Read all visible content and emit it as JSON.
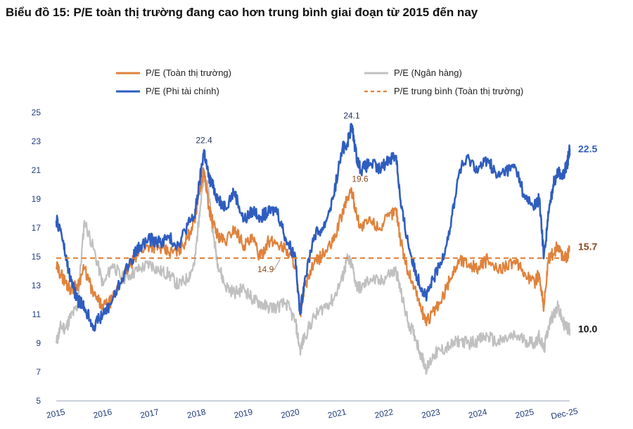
{
  "title": "Biểu đồ 15: P/E toàn thị trường đang cao hơn trung bình giai đoạn từ 2015 đến nay",
  "colors": {
    "market": "#e0823c",
    "banks": "#c0c0c0",
    "nonfin": "#2f5dbf",
    "average": "#e0823c",
    "axis_text": "#1f3b7a",
    "end_market": "#8a4a1e",
    "end_nonfin": "#2f5dbf",
    "end_banks": "#111111"
  },
  "chart_data": {
    "type": "line",
    "x_ticks": [
      "2015",
      "2016",
      "2017",
      "2018",
      "2019",
      "2020",
      "2021",
      "2022",
      "2023",
      "2024",
      "2025",
      "Dec-25"
    ],
    "ylim": [
      5,
      25
    ],
    "y_ticks": [
      "5",
      "7",
      "9",
      "11",
      "13",
      "15",
      "17",
      "19",
      "21",
      "23",
      "25"
    ],
    "grid": false,
    "legend_position": "top",
    "series": [
      {
        "name": "P/E (Toàn thị trường)",
        "key": "market",
        "x": [
          2015.0,
          2015.1,
          2015.2,
          2015.3,
          2015.45,
          2015.6,
          2015.8,
          2016.0,
          2016.2,
          2016.4,
          2016.6,
          2016.8,
          2017.0,
          2017.2,
          2017.4,
          2017.6,
          2017.8,
          2017.95,
          2018.05,
          2018.15,
          2018.25,
          2018.35,
          2018.45,
          2018.6,
          2018.8,
          2019.0,
          2019.2,
          2019.35,
          2019.5,
          2019.7,
          2019.9,
          2020.1,
          2020.2,
          2020.3,
          2020.5,
          2020.7,
          2020.9,
          2021.1,
          2021.2,
          2021.3,
          2021.4,
          2021.5,
          2021.7,
          2021.9,
          2022.1,
          2022.25,
          2022.35,
          2022.5,
          2022.65,
          2022.8,
          2022.9,
          2023.05,
          2023.2,
          2023.4,
          2023.6,
          2023.8,
          2024.0,
          2024.2,
          2024.4,
          2024.6,
          2024.8,
          2025.0,
          2025.2,
          2025.3,
          2025.4,
          2025.5,
          2025.6,
          2025.7,
          2025.8,
          2025.9,
          2025.95
        ],
        "values": [
          14.3,
          13.8,
          13.2,
          12.8,
          13.0,
          14.2,
          12.3,
          11.5,
          12.0,
          13.5,
          14.5,
          15.5,
          15.8,
          15.6,
          15.3,
          15.4,
          16.3,
          17.6,
          19.5,
          21.0,
          18.5,
          17.2,
          16.5,
          16.0,
          17.0,
          15.8,
          16.2,
          14.9,
          16.0,
          16.0,
          15.5,
          14.5,
          11.0,
          13.0,
          14.5,
          15.2,
          16.0,
          18.0,
          19.0,
          19.6,
          18.0,
          17.0,
          17.5,
          17.0,
          17.8,
          18.3,
          16.0,
          14.0,
          12.8,
          11.2,
          10.5,
          11.2,
          11.8,
          13.5,
          14.8,
          14.5,
          14.2,
          14.8,
          14.0,
          14.5,
          14.5,
          13.8,
          13.2,
          13.8,
          11.5,
          14.8,
          15.2,
          15.8,
          15.0,
          15.0,
          15.7
        ]
      },
      {
        "name": "P/E (Ngân hàng)",
        "key": "banks",
        "x": [
          2015.0,
          2015.1,
          2015.2,
          2015.3,
          2015.45,
          2015.6,
          2015.8,
          2016.0,
          2016.2,
          2016.4,
          2016.6,
          2016.8,
          2017.0,
          2017.2,
          2017.4,
          2017.6,
          2017.8,
          2017.95,
          2018.05,
          2018.15,
          2018.25,
          2018.35,
          2018.45,
          2018.6,
          2018.8,
          2019.0,
          2019.2,
          2019.35,
          2019.5,
          2019.7,
          2019.9,
          2020.1,
          2020.2,
          2020.3,
          2020.5,
          2020.7,
          2020.9,
          2021.1,
          2021.2,
          2021.3,
          2021.4,
          2021.5,
          2021.7,
          2021.9,
          2022.1,
          2022.25,
          2022.35,
          2022.5,
          2022.65,
          2022.8,
          2022.9,
          2023.05,
          2023.2,
          2023.4,
          2023.6,
          2023.8,
          2024.0,
          2024.2,
          2024.4,
          2024.6,
          2024.8,
          2025.0,
          2025.2,
          2025.3,
          2025.4,
          2025.5,
          2025.6,
          2025.7,
          2025.8,
          2025.9,
          2025.95
        ],
        "values": [
          9.0,
          10.2,
          10.0,
          10.8,
          11.5,
          17.5,
          15.5,
          13.0,
          14.5,
          13.5,
          13.8,
          14.2,
          14.5,
          14.0,
          13.8,
          13.0,
          13.5,
          14.5,
          18.0,
          20.5,
          19.5,
          16.5,
          14.5,
          13.0,
          12.5,
          12.8,
          12.0,
          11.8,
          11.5,
          11.5,
          11.8,
          10.5,
          8.5,
          9.5,
          10.8,
          11.5,
          12.0,
          13.5,
          14.8,
          14.5,
          13.0,
          12.8,
          13.5,
          13.2,
          13.8,
          14.0,
          12.5,
          10.5,
          9.5,
          8.0,
          7.2,
          8.2,
          8.5,
          8.8,
          9.2,
          9.0,
          9.2,
          9.5,
          9.0,
          9.3,
          9.5,
          9.2,
          9.0,
          9.5,
          8.5,
          10.2,
          11.0,
          11.5,
          10.5,
          10.0,
          10.0
        ]
      },
      {
        "name": "P/E (Phi tài chính)",
        "key": "nonfin",
        "x": [
          2015.0,
          2015.1,
          2015.2,
          2015.3,
          2015.45,
          2015.6,
          2015.8,
          2016.0,
          2016.2,
          2016.4,
          2016.6,
          2016.8,
          2017.0,
          2017.2,
          2017.4,
          2017.6,
          2017.8,
          2017.95,
          2018.05,
          2018.15,
          2018.25,
          2018.35,
          2018.45,
          2018.6,
          2018.8,
          2019.0,
          2019.2,
          2019.35,
          2019.5,
          2019.7,
          2019.9,
          2020.1,
          2020.2,
          2020.3,
          2020.5,
          2020.7,
          2020.9,
          2021.1,
          2021.2,
          2021.3,
          2021.4,
          2021.5,
          2021.7,
          2021.9,
          2022.1,
          2022.25,
          2022.35,
          2022.5,
          2022.65,
          2022.8,
          2022.9,
          2023.05,
          2023.2,
          2023.4,
          2023.6,
          2023.8,
          2024.0,
          2024.2,
          2024.4,
          2024.6,
          2024.8,
          2025.0,
          2025.2,
          2025.3,
          2025.4,
          2025.5,
          2025.6,
          2025.7,
          2025.8,
          2025.9,
          2025.95
        ],
        "values": [
          17.5,
          16.8,
          15.0,
          13.5,
          12.0,
          11.5,
          10.2,
          11.0,
          12.0,
          13.5,
          14.8,
          15.8,
          16.2,
          16.0,
          16.3,
          15.8,
          17.2,
          17.8,
          20.0,
          22.4,
          20.5,
          19.8,
          19.0,
          18.5,
          19.5,
          17.5,
          18.2,
          17.8,
          18.0,
          18.3,
          16.2,
          15.0,
          11.0,
          13.5,
          16.5,
          17.0,
          19.0,
          22.5,
          22.8,
          24.1,
          22.0,
          21.0,
          21.5,
          21.0,
          21.8,
          22.0,
          18.5,
          16.0,
          14.0,
          12.8,
          12.2,
          13.5,
          14.5,
          17.0,
          21.0,
          21.8,
          21.0,
          21.8,
          20.5,
          21.0,
          21.2,
          19.0,
          18.5,
          19.0,
          15.0,
          18.0,
          20.0,
          21.0,
          20.5,
          21.5,
          22.5
        ]
      },
      {
        "name": "P/E trung bình (Toàn thị trường)",
        "key": "average",
        "dashed": true,
        "x": [
          2015.0,
          2025.95
        ],
        "values": [
          14.9,
          14.9
        ]
      }
    ],
    "annotations": [
      {
        "text": "22.4",
        "x": 2018.15,
        "y": 22.4,
        "series": "nonfin"
      },
      {
        "text": "24.1",
        "x": 2021.3,
        "y": 24.1,
        "series": "nonfin"
      },
      {
        "text": "19.6",
        "x": 2021.3,
        "y": 19.6,
        "series": "market"
      },
      {
        "text": "14.9",
        "x": 2019.35,
        "y": 14.9,
        "series": "average"
      }
    ],
    "end_labels": [
      {
        "text": "22.5",
        "series": "nonfin",
        "y": 22.5
      },
      {
        "text": "15.7",
        "series": "market",
        "y": 15.7
      },
      {
        "text": "10.0",
        "series": "banks",
        "y": 10.0
      }
    ]
  }
}
